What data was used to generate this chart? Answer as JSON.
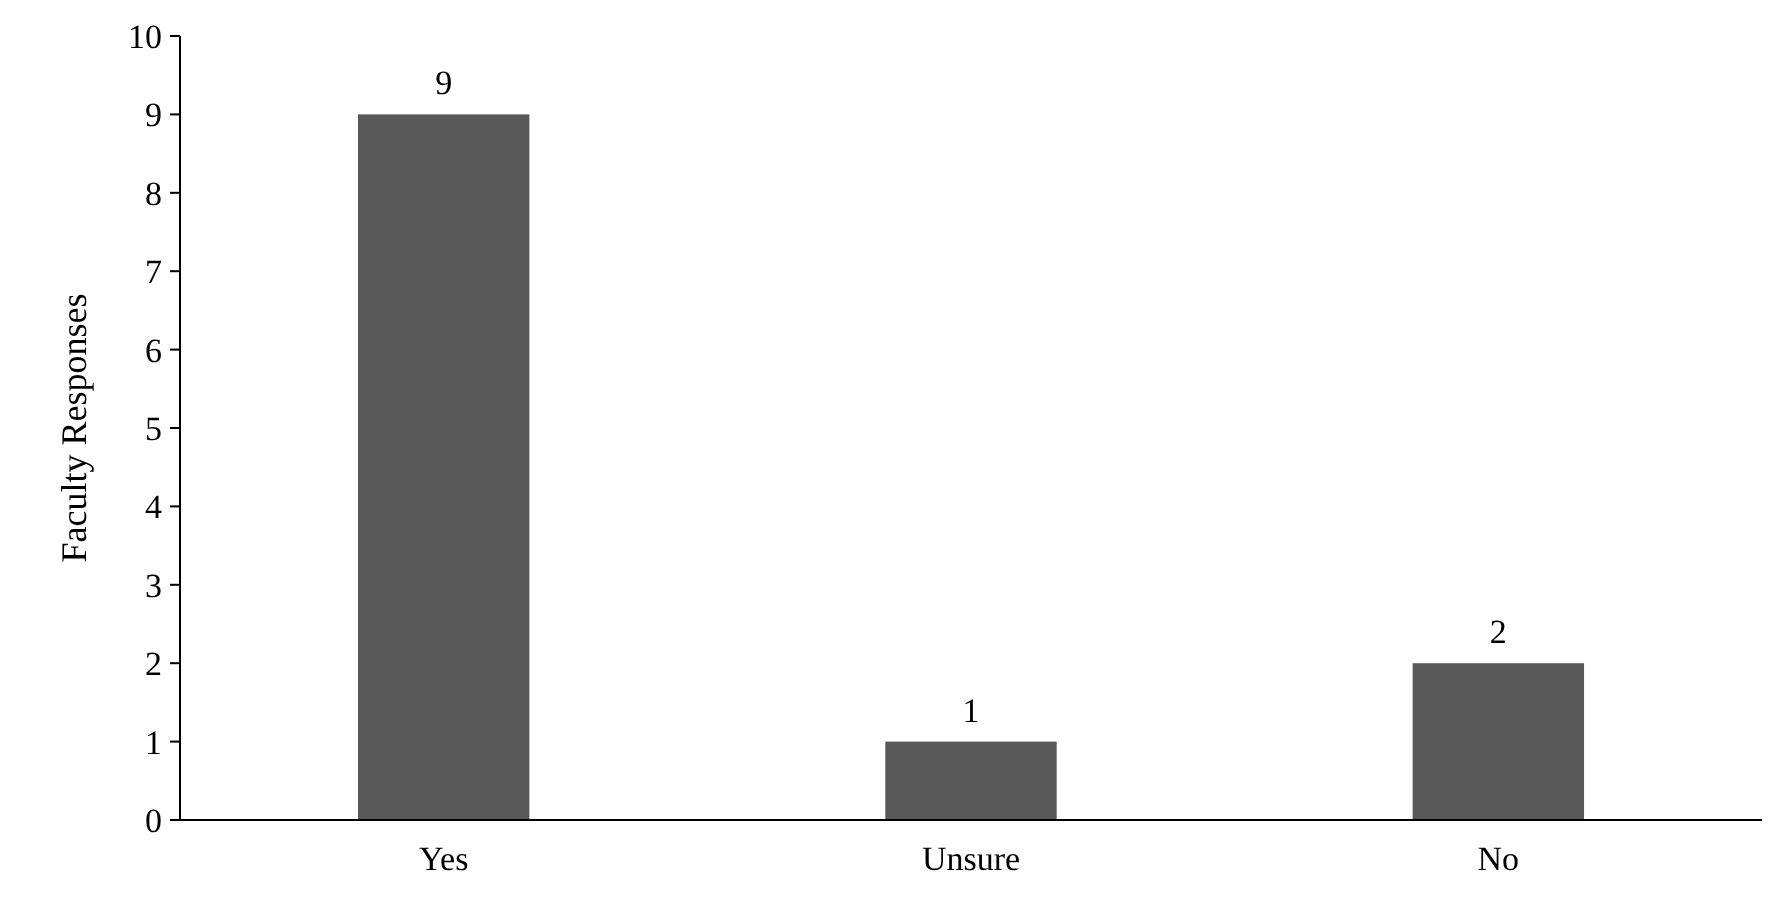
{
  "chart_data": {
    "type": "bar",
    "ylabel": "Faculty Responses",
    "categories": [
      "Yes",
      "Unsure",
      "No"
    ],
    "values": [
      9,
      1,
      2
    ],
    "color": "#595959",
    "ylim": [
      0,
      10
    ],
    "yticks": [
      0,
      1,
      2,
      3,
      4,
      5,
      6,
      7,
      8,
      9,
      10
    ],
    "data_labels": true,
    "grid": false
  }
}
